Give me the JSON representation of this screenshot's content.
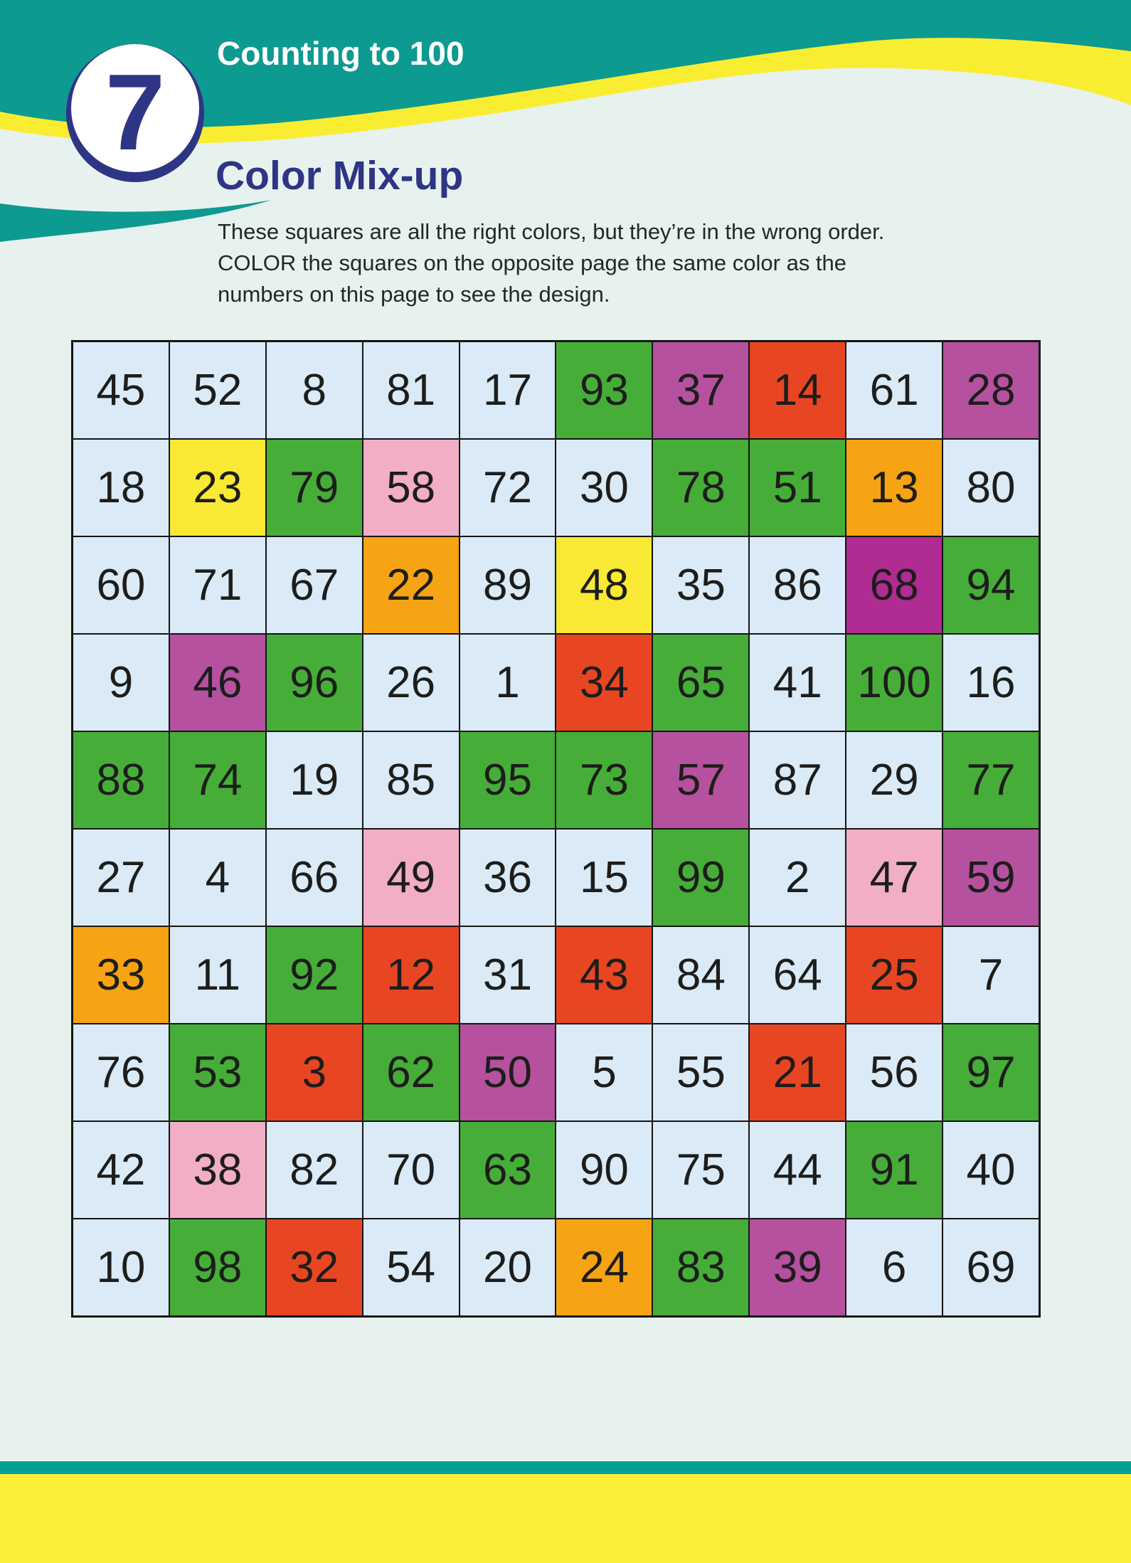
{
  "page": {
    "background": "#e7f2ef"
  },
  "header": {
    "lesson_number": "7",
    "title": "Counting to 100",
    "heading": "Color Mix-up",
    "instructions": [
      "These squares are all the right colors, but they’re in the wrong order.",
      "COLOR the squares on the opposite page the same color as the",
      "numbers on this page to see the design."
    ],
    "teal": "#0d9a90",
    "ribbon_yellow": "#f9ed32",
    "navy": "#2e3585",
    "badge_fill": "#ffffff"
  },
  "grid": {
    "rows_count": 10,
    "cols_count": 10,
    "border_color": "#141414",
    "number_color": "#1d1d1b",
    "palette": {
      "lb": "#daeaf7",
      "gr": "#46ae38",
      "pu": "#b5519f",
      "mg": "#b02b92",
      "re": "#e84623",
      "or": "#f6a314",
      "ye": "#f9e934",
      "pk": "#f2aec7"
    },
    "rows": [
      [
        {
          "n": "45",
          "c": "lb"
        },
        {
          "n": "52",
          "c": "lb"
        },
        {
          "n": "8",
          "c": "lb"
        },
        {
          "n": "81",
          "c": "lb"
        },
        {
          "n": "17",
          "c": "lb"
        },
        {
          "n": "93",
          "c": "gr"
        },
        {
          "n": "37",
          "c": "pu"
        },
        {
          "n": "14",
          "c": "re"
        },
        {
          "n": "61",
          "c": "lb"
        },
        {
          "n": "28",
          "c": "pu"
        }
      ],
      [
        {
          "n": "18",
          "c": "lb"
        },
        {
          "n": "23",
          "c": "ye"
        },
        {
          "n": "79",
          "c": "gr"
        },
        {
          "n": "58",
          "c": "pk"
        },
        {
          "n": "72",
          "c": "lb"
        },
        {
          "n": "30",
          "c": "lb"
        },
        {
          "n": "78",
          "c": "gr"
        },
        {
          "n": "51",
          "c": "gr"
        },
        {
          "n": "13",
          "c": "or"
        },
        {
          "n": "80",
          "c": "lb"
        }
      ],
      [
        {
          "n": "60",
          "c": "lb"
        },
        {
          "n": "71",
          "c": "lb"
        },
        {
          "n": "67",
          "c": "lb"
        },
        {
          "n": "22",
          "c": "or"
        },
        {
          "n": "89",
          "c": "lb"
        },
        {
          "n": "48",
          "c": "ye"
        },
        {
          "n": "35",
          "c": "lb"
        },
        {
          "n": "86",
          "c": "lb"
        },
        {
          "n": "68",
          "c": "mg"
        },
        {
          "n": "94",
          "c": "gr"
        }
      ],
      [
        {
          "n": "9",
          "c": "lb"
        },
        {
          "n": "46",
          "c": "pu"
        },
        {
          "n": "96",
          "c": "gr"
        },
        {
          "n": "26",
          "c": "lb"
        },
        {
          "n": "1",
          "c": "lb"
        },
        {
          "n": "34",
          "c": "re"
        },
        {
          "n": "65",
          "c": "gr"
        },
        {
          "n": "41",
          "c": "lb"
        },
        {
          "n": "100",
          "c": "gr"
        },
        {
          "n": "16",
          "c": "lb"
        }
      ],
      [
        {
          "n": "88",
          "c": "gr"
        },
        {
          "n": "74",
          "c": "gr"
        },
        {
          "n": "19",
          "c": "lb"
        },
        {
          "n": "85",
          "c": "lb"
        },
        {
          "n": "95",
          "c": "gr"
        },
        {
          "n": "73",
          "c": "gr"
        },
        {
          "n": "57",
          "c": "pu"
        },
        {
          "n": "87",
          "c": "lb"
        },
        {
          "n": "29",
          "c": "lb"
        },
        {
          "n": "77",
          "c": "gr"
        }
      ],
      [
        {
          "n": "27",
          "c": "lb"
        },
        {
          "n": "4",
          "c": "lb"
        },
        {
          "n": "66",
          "c": "lb"
        },
        {
          "n": "49",
          "c": "pk"
        },
        {
          "n": "36",
          "c": "lb"
        },
        {
          "n": "15",
          "c": "lb"
        },
        {
          "n": "99",
          "c": "gr"
        },
        {
          "n": "2",
          "c": "lb"
        },
        {
          "n": "47",
          "c": "pk"
        },
        {
          "n": "59",
          "c": "pu"
        }
      ],
      [
        {
          "n": "33",
          "c": "or"
        },
        {
          "n": "11",
          "c": "lb"
        },
        {
          "n": "92",
          "c": "gr"
        },
        {
          "n": "12",
          "c": "re"
        },
        {
          "n": "31",
          "c": "lb"
        },
        {
          "n": "43",
          "c": "re"
        },
        {
          "n": "84",
          "c": "lb"
        },
        {
          "n": "64",
          "c": "lb"
        },
        {
          "n": "25",
          "c": "re"
        },
        {
          "n": "7",
          "c": "lb"
        }
      ],
      [
        {
          "n": "76",
          "c": "lb"
        },
        {
          "n": "53",
          "c": "gr"
        },
        {
          "n": "3",
          "c": "re"
        },
        {
          "n": "62",
          "c": "gr"
        },
        {
          "n": "50",
          "c": "pu"
        },
        {
          "n": "5",
          "c": "lb"
        },
        {
          "n": "55",
          "c": "lb"
        },
        {
          "n": "21",
          "c": "re"
        },
        {
          "n": "56",
          "c": "lb"
        },
        {
          "n": "97",
          "c": "gr"
        }
      ],
      [
        {
          "n": "42",
          "c": "lb"
        },
        {
          "n": "38",
          "c": "pk"
        },
        {
          "n": "82",
          "c": "lb"
        },
        {
          "n": "70",
          "c": "lb"
        },
        {
          "n": "63",
          "c": "gr"
        },
        {
          "n": "90",
          "c": "lb"
        },
        {
          "n": "75",
          "c": "lb"
        },
        {
          "n": "44",
          "c": "lb"
        },
        {
          "n": "91",
          "c": "gr"
        },
        {
          "n": "40",
          "c": "lb"
        }
      ],
      [
        {
          "n": "10",
          "c": "lb"
        },
        {
          "n": "98",
          "c": "gr"
        },
        {
          "n": "32",
          "c": "re"
        },
        {
          "n": "54",
          "c": "lb"
        },
        {
          "n": "20",
          "c": "lb"
        },
        {
          "n": "24",
          "c": "or"
        },
        {
          "n": "83",
          "c": "gr"
        },
        {
          "n": "39",
          "c": "pu"
        },
        {
          "n": "6",
          "c": "lb"
        },
        {
          "n": "69",
          "c": "lb"
        }
      ]
    ]
  },
  "footer": {
    "teal_stripe": "#00a096",
    "yellow_band": "#fdee38"
  }
}
